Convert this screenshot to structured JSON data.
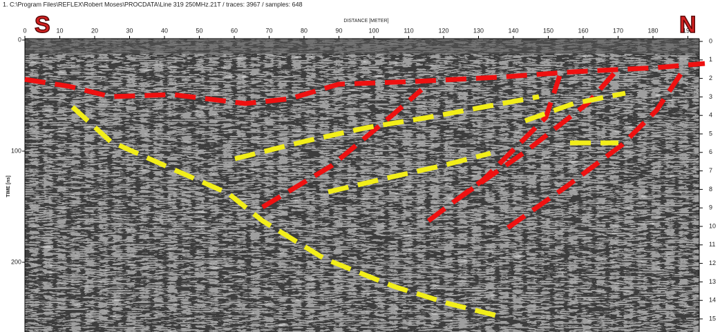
{
  "header": {
    "title": "1. C:\\Program Files\\REFLEX\\Robert Moses\\PROCDATA\\Line 319 250MHz.21T / traces: 3967 / samples: 648"
  },
  "axes": {
    "top_label": "DISTANCE [METER]",
    "left_label": "TIME [ns]",
    "top_ticks": [
      0,
      10,
      20,
      30,
      40,
      50,
      60,
      70,
      80,
      90,
      100,
      110,
      120,
      130,
      140,
      150,
      160,
      170,
      180,
      190
    ],
    "left_ticks": [
      0,
      100,
      200
    ],
    "right_ticks": [
      0,
      1,
      2,
      3,
      4,
      5,
      6,
      7,
      8,
      9,
      10,
      11,
      12,
      13,
      14,
      15
    ]
  },
  "annotations": {
    "south": "S",
    "north": "N"
  }
}
